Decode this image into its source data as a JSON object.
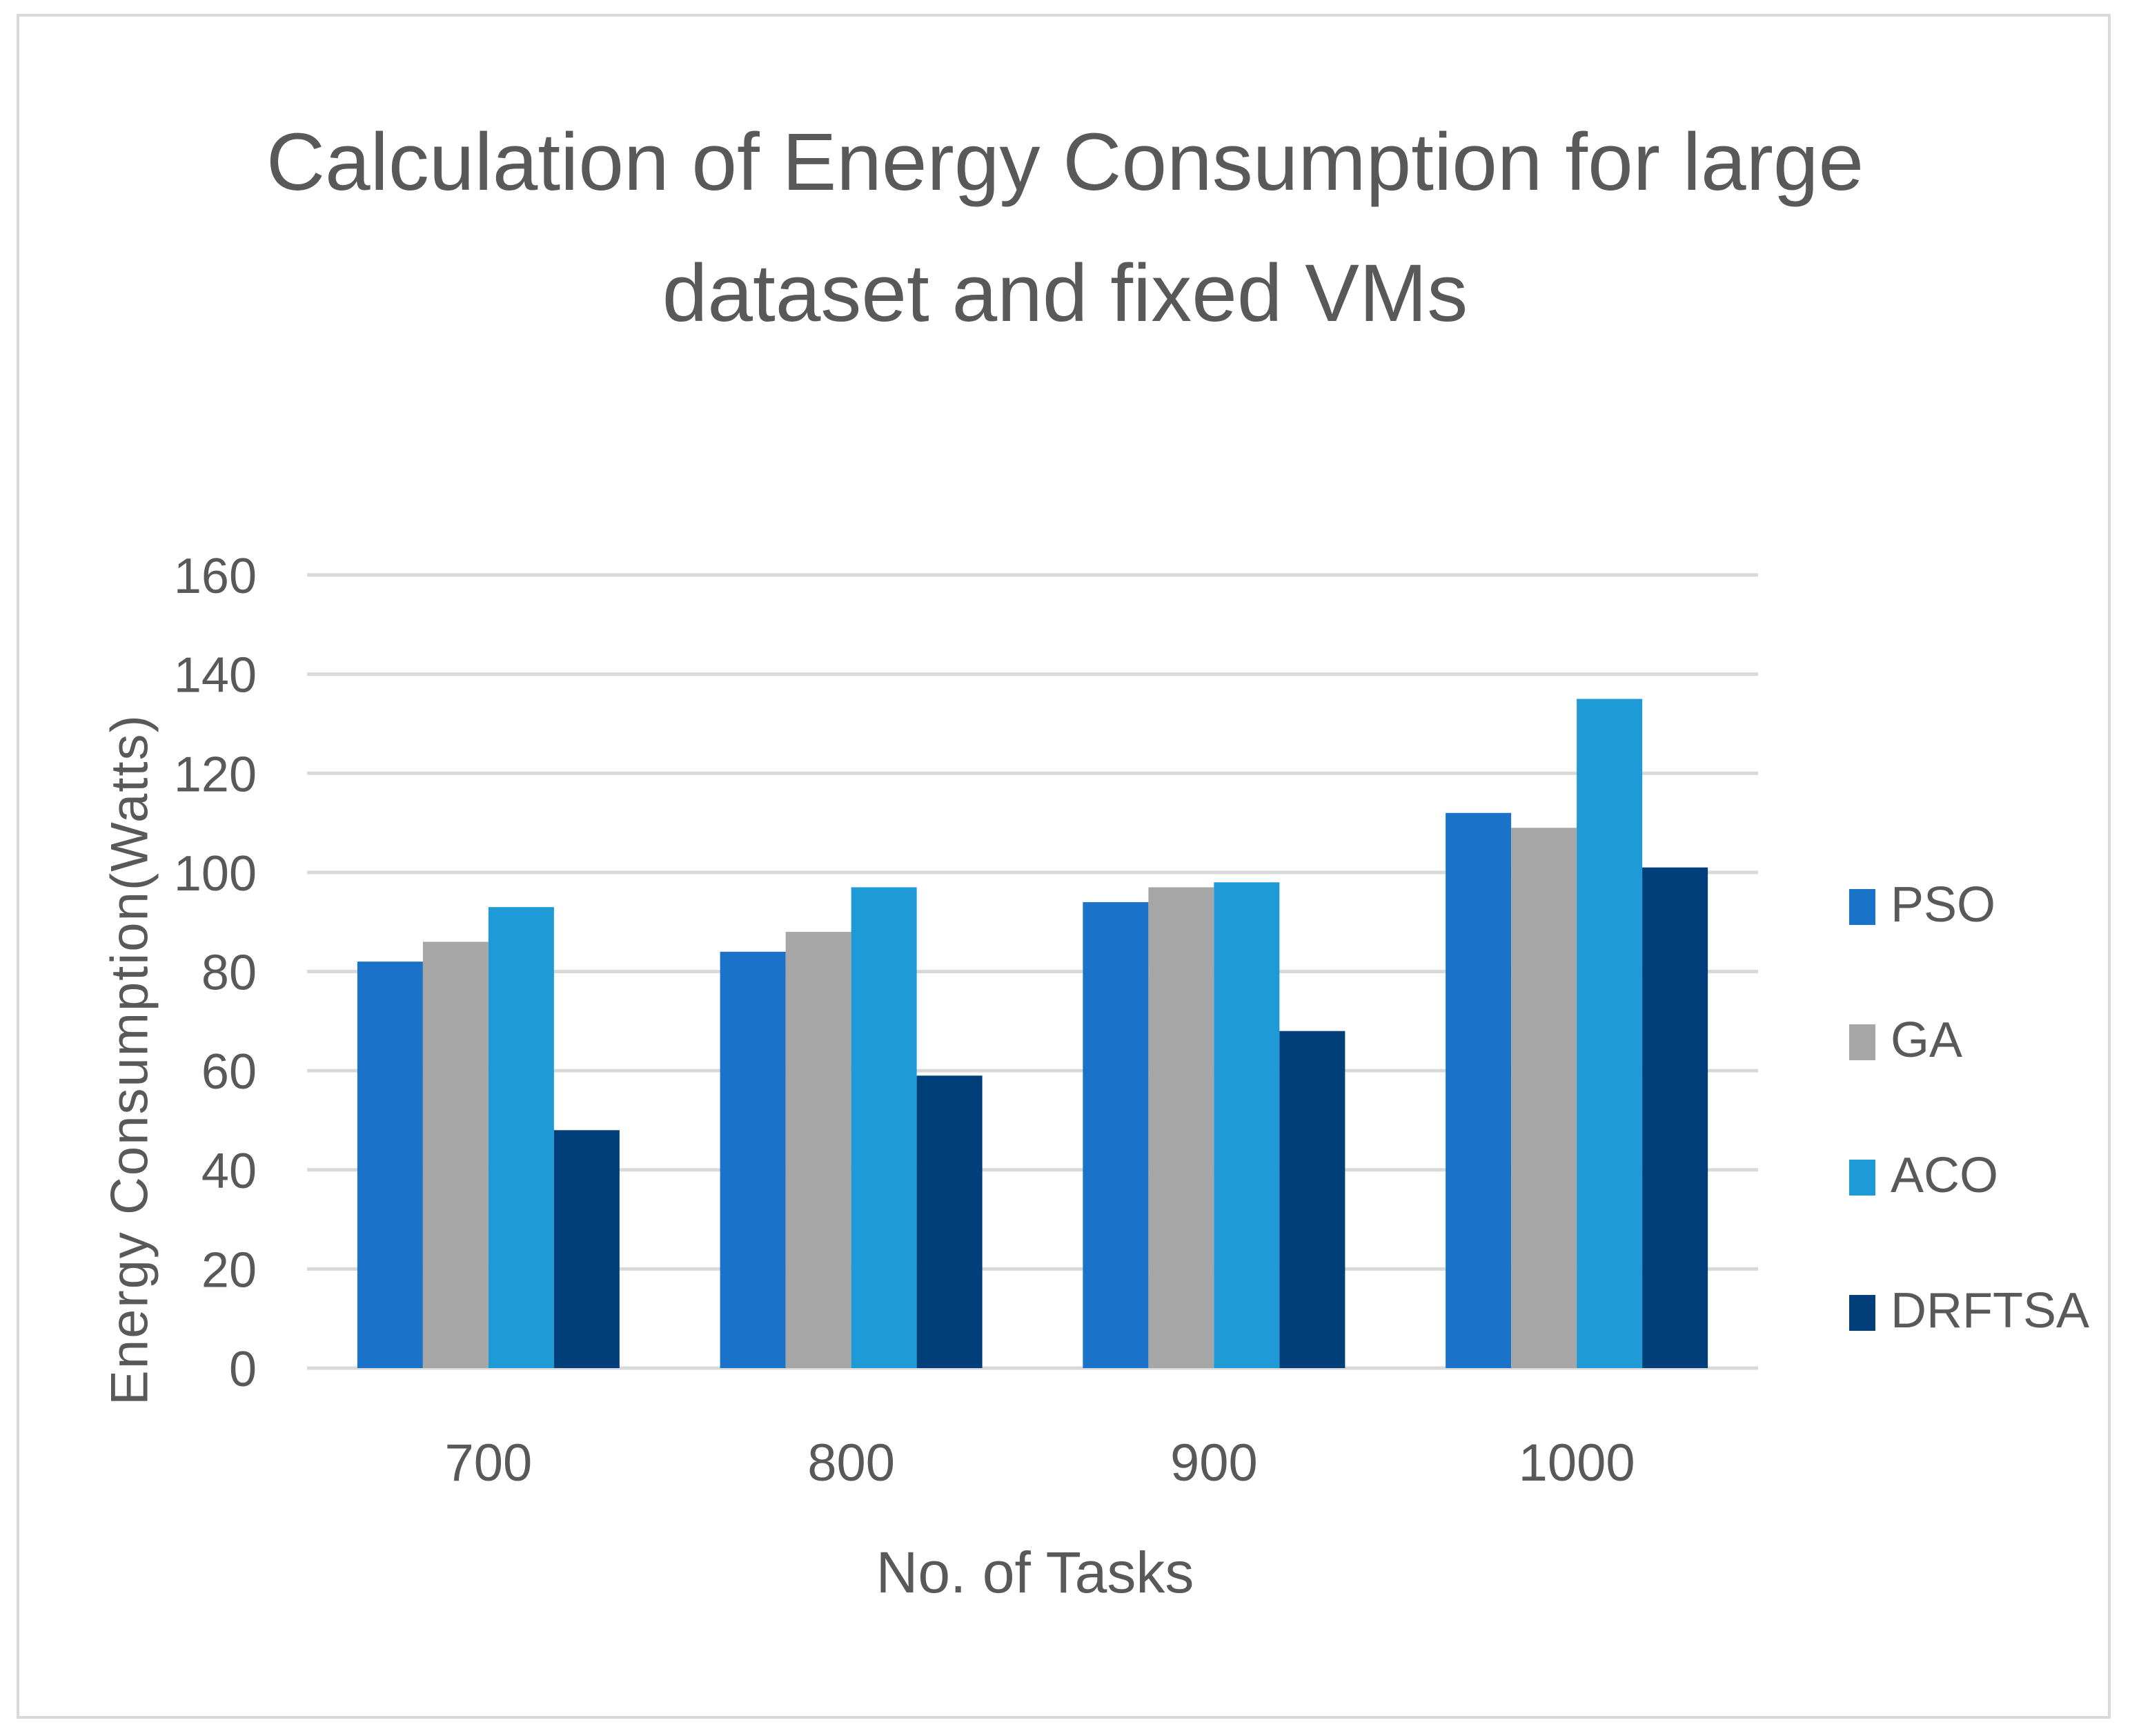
{
  "chart_data": {
    "type": "bar",
    "title_lines": [
      "Calculation of Energy Consumption for large",
      "dataset and fixed VMs"
    ],
    "xlabel": "No. of Tasks",
    "ylabel": "Energy Consumption(Watts)",
    "categories": [
      "700",
      "800",
      "900",
      "1000"
    ],
    "ylim": [
      0,
      160
    ],
    "yticks": [
      0,
      20,
      40,
      60,
      80,
      100,
      120,
      140,
      160
    ],
    "grid": true,
    "legend_position": "right",
    "series": [
      {
        "name": "PSO",
        "color": "#1A73C9",
        "values": [
          82,
          84,
          94,
          112
        ]
      },
      {
        "name": "GA",
        "color": "#A6A6A6",
        "values": [
          86,
          88,
          97,
          109
        ]
      },
      {
        "name": "ACO",
        "color": "#1E9BD7",
        "values": [
          93,
          97,
          98,
          135
        ]
      },
      {
        "name": "DRFTSA",
        "color": "#003F7A",
        "values": [
          48,
          59,
          68,
          101
        ]
      }
    ]
  }
}
